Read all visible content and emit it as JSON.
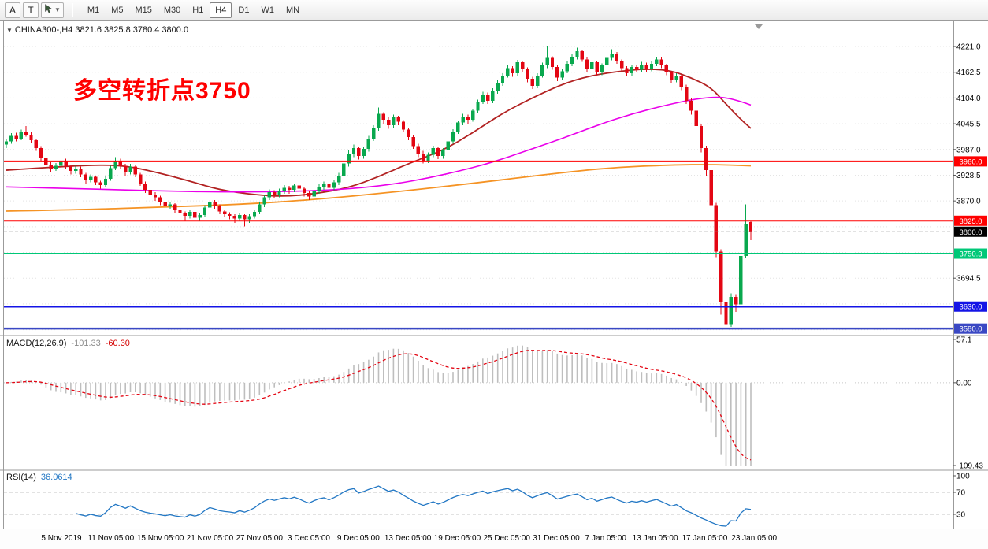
{
  "toolbar": {
    "tool_buttons": [
      {
        "name": "text-tool",
        "label": "A"
      },
      {
        "name": "label-tool",
        "label": "T"
      },
      {
        "name": "cursor-tool",
        "label": "",
        "has_dropdown": true
      }
    ],
    "timeframes": [
      "M1",
      "M5",
      "M15",
      "M30",
      "H1",
      "H4",
      "D1",
      "W1",
      "MN"
    ],
    "selected_timeframe": "H4"
  },
  "chart_data": {
    "type": "candlestick",
    "symbol": "CHINA300-",
    "timeframe": "H4",
    "header_text": "CHINA300-,H4 3821.6 3825.8 3780.4 3800.0",
    "last_bar": {
      "open": 3821.6,
      "high": 3825.8,
      "low": 3780.4,
      "close": 3800.0
    },
    "annotation": {
      "text": "多空转折点3750",
      "color": "#FF0000"
    },
    "colors": {
      "up": "#09A84E",
      "down": "#E30613",
      "grid": "#E4E4E4"
    },
    "price_axis": {
      "min": 3566,
      "max": 4273,
      "step": 58.5,
      "tick_labels": [
        4221.0,
        4162.5,
        4104.0,
        4045.5,
        3987.0,
        3928.5,
        3870.0,
        3694.5
      ]
    },
    "horizontal_lines": [
      {
        "price": 3960.0,
        "label": "3960.0",
        "color": "#FF0000",
        "width": 2
      },
      {
        "price": 3825.0,
        "label": "3825.0",
        "color": "#FF0000",
        "width": 2
      },
      {
        "price": 3750.3,
        "label": "3750.3",
        "color": "#00C878",
        "width": 2
      },
      {
        "price": 3630.0,
        "label": "3630.0",
        "color": "#1414E6",
        "width": 2.5
      },
      {
        "price": 3580.0,
        "label": "3580.0",
        "color": "#3A48C4",
        "width": 2.5
      }
    ],
    "current_price": {
      "value": 3800.0,
      "label": "3800.0",
      "box_color": "#000000"
    },
    "moving_averages": [
      {
        "name": "ma-red",
        "color": "#B22222",
        "width": 1.8,
        "points": [
          [
            0,
            3940
          ],
          [
            8,
            3946
          ],
          [
            18,
            3952
          ],
          [
            24,
            3950
          ],
          [
            30,
            3936
          ],
          [
            37,
            3915
          ],
          [
            43,
            3895
          ],
          [
            50,
            3884
          ],
          [
            56,
            3880
          ],
          [
            62,
            3886
          ],
          [
            69,
            3900
          ],
          [
            75,
            3925
          ],
          [
            81,
            3955
          ],
          [
            88,
            3985
          ],
          [
            94,
            4025
          ],
          [
            100,
            4070
          ],
          [
            107,
            4110
          ],
          [
            113,
            4140
          ],
          [
            119,
            4158
          ],
          [
            126,
            4168
          ],
          [
            130,
            4170
          ],
          [
            134,
            4166
          ],
          [
            138,
            4150
          ],
          [
            142,
            4128
          ],
          [
            145,
            4090
          ],
          [
            148,
            4055
          ],
          [
            150,
            4035
          ]
        ]
      },
      {
        "name": "ma-magenta",
        "color": "#EA00EA",
        "width": 1.6,
        "points": [
          [
            0,
            3902
          ],
          [
            15,
            3898
          ],
          [
            30,
            3893
          ],
          [
            45,
            3890
          ],
          [
            60,
            3892
          ],
          [
            70,
            3898
          ],
          [
            78,
            3908
          ],
          [
            85,
            3922
          ],
          [
            92,
            3940
          ],
          [
            98,
            3958
          ],
          [
            105,
            3985
          ],
          [
            112,
            4012
          ],
          [
            119,
            4042
          ],
          [
            126,
            4068
          ],
          [
            133,
            4088
          ],
          [
            138,
            4100
          ],
          [
            142,
            4106
          ],
          [
            145,
            4105
          ],
          [
            148,
            4096
          ],
          [
            150,
            4088
          ]
        ]
      },
      {
        "name": "ma-orange",
        "color": "#F59324",
        "width": 1.8,
        "points": [
          [
            0,
            3847
          ],
          [
            15,
            3850
          ],
          [
            31,
            3856
          ],
          [
            47,
            3862
          ],
          [
            62,
            3873
          ],
          [
            78,
            3890
          ],
          [
            94,
            3910
          ],
          [
            110,
            3932
          ],
          [
            122,
            3946
          ],
          [
            134,
            3952
          ],
          [
            142,
            3953
          ],
          [
            150,
            3950
          ]
        ]
      }
    ],
    "candles": [
      [
        3998,
        4012,
        3990,
        4005
      ],
      [
        4005,
        4024,
        4000,
        4018
      ],
      [
        4018,
        4025,
        4005,
        4012
      ],
      [
        4012,
        4032,
        4008,
        4026
      ],
      [
        4026,
        4040,
        4016,
        4020
      ],
      [
        4020,
        4026,
        4002,
        4008
      ],
      [
        4008,
        4012,
        3984,
        3990
      ],
      [
        3990,
        3995,
        3962,
        3968
      ],
      [
        3968,
        3974,
        3946,
        3952
      ],
      [
        3952,
        3958,
        3935,
        3942
      ],
      [
        3942,
        3956,
        3938,
        3950
      ],
      [
        3950,
        3970,
        3946,
        3962
      ],
      [
        3962,
        3966,
        3942,
        3948
      ],
      [
        3948,
        3952,
        3930,
        3938
      ],
      [
        3938,
        3950,
        3932,
        3944
      ],
      [
        3944,
        3948,
        3924,
        3930
      ],
      [
        3930,
        3934,
        3910,
        3918
      ],
      [
        3918,
        3930,
        3912,
        3925
      ],
      [
        3925,
        3928,
        3906,
        3912
      ],
      [
        3912,
        3916,
        3898,
        3906
      ],
      [
        3906,
        3926,
        3902,
        3920
      ],
      [
        3920,
        3950,
        3916,
        3945
      ],
      [
        3945,
        3970,
        3940,
        3962
      ],
      [
        3962,
        3966,
        3944,
        3950
      ],
      [
        3950,
        3954,
        3928,
        3935
      ],
      [
        3935,
        3954,
        3930,
        3948
      ],
      [
        3948,
        3952,
        3924,
        3930
      ],
      [
        3930,
        3934,
        3904,
        3910
      ],
      [
        3910,
        3914,
        3888,
        3895
      ],
      [
        3895,
        3900,
        3878,
        3885
      ],
      [
        3885,
        3890,
        3870,
        3878
      ],
      [
        3878,
        3882,
        3860,
        3868
      ],
      [
        3868,
        3872,
        3850,
        3858
      ],
      [
        3858,
        3868,
        3852,
        3862
      ],
      [
        3862,
        3865,
        3843,
        3850
      ],
      [
        3850,
        3854,
        3835,
        3842
      ],
      [
        3842,
        3846,
        3824,
        3836
      ],
      [
        3836,
        3850,
        3830,
        3845
      ],
      [
        3845,
        3848,
        3826,
        3832
      ],
      [
        3832,
        3843,
        3826,
        3838
      ],
      [
        3838,
        3860,
        3834,
        3855
      ],
      [
        3855,
        3874,
        3850,
        3868
      ],
      [
        3868,
        3872,
        3852,
        3858
      ],
      [
        3858,
        3862,
        3840,
        3846
      ],
      [
        3846,
        3850,
        3833,
        3840
      ],
      [
        3840,
        3844,
        3828,
        3836
      ],
      [
        3836,
        3840,
        3820,
        3830
      ],
      [
        3830,
        3843,
        3824,
        3838
      ],
      [
        3838,
        3840,
        3812,
        3828
      ],
      [
        3828,
        3840,
        3820,
        3835
      ],
      [
        3835,
        3850,
        3830,
        3845
      ],
      [
        3845,
        3867,
        3840,
        3862
      ],
      [
        3862,
        3883,
        3856,
        3878
      ],
      [
        3878,
        3896,
        3872,
        3890
      ],
      [
        3890,
        3894,
        3876,
        3884
      ],
      [
        3884,
        3898,
        3878,
        3892
      ],
      [
        3892,
        3906,
        3886,
        3900
      ],
      [
        3900,
        3904,
        3886,
        3895
      ],
      [
        3895,
        3910,
        3890,
        3905
      ],
      [
        3905,
        3909,
        3890,
        3898
      ],
      [
        3898,
        3902,
        3880,
        3888
      ],
      [
        3888,
        3892,
        3872,
        3880
      ],
      [
        3880,
        3897,
        3874,
        3892
      ],
      [
        3892,
        3908,
        3886,
        3902
      ],
      [
        3902,
        3914,
        3895,
        3908
      ],
      [
        3908,
        3912,
        3892,
        3900
      ],
      [
        3900,
        3918,
        3894,
        3912
      ],
      [
        3912,
        3934,
        3906,
        3928
      ],
      [
        3928,
        3960,
        3922,
        3955
      ],
      [
        3955,
        3985,
        3948,
        3978
      ],
      [
        3978,
        3998,
        3970,
        3990
      ],
      [
        3990,
        3994,
        3964,
        3972
      ],
      [
        3972,
        3994,
        3966,
        3988
      ],
      [
        3988,
        4018,
        3982,
        4012
      ],
      [
        4012,
        4042,
        4006,
        4035
      ],
      [
        4035,
        4082,
        4030,
        4068
      ],
      [
        4068,
        4072,
        4046,
        4055
      ],
      [
        4055,
        4060,
        4034,
        4042
      ],
      [
        4042,
        4066,
        4036,
        4060
      ],
      [
        4060,
        4064,
        4042,
        4050
      ],
      [
        4050,
        4054,
        4026,
        4032
      ],
      [
        4032,
        4036,
        4008,
        4015
      ],
      [
        4015,
        4020,
        3988,
        3995
      ],
      [
        3995,
        4000,
        3970,
        3978
      ],
      [
        3978,
        3984,
        3955,
        3962
      ],
      [
        3962,
        3980,
        3956,
        3975
      ],
      [
        3975,
        3996,
        3970,
        3990
      ],
      [
        3990,
        3994,
        3965,
        3972
      ],
      [
        3972,
        3990,
        3966,
        3985
      ],
      [
        3985,
        4010,
        3980,
        4005
      ],
      [
        4005,
        4033,
        4000,
        4028
      ],
      [
        4028,
        4053,
        4022,
        4048
      ],
      [
        4048,
        4068,
        4042,
        4062
      ],
      [
        4062,
        4066,
        4046,
        4055
      ],
      [
        4055,
        4080,
        4050,
        4075
      ],
      [
        4075,
        4100,
        4070,
        4095
      ],
      [
        4095,
        4118,
        4090,
        4112
      ],
      [
        4112,
        4116,
        4090,
        4098
      ],
      [
        4098,
        4126,
        4092,
        4120
      ],
      [
        4120,
        4144,
        4114,
        4138
      ],
      [
        4138,
        4160,
        4132,
        4155
      ],
      [
        4155,
        4178,
        4150,
        4172
      ],
      [
        4172,
        4176,
        4152,
        4160
      ],
      [
        4160,
        4191,
        4155,
        4185
      ],
      [
        4185,
        4189,
        4162,
        4170
      ],
      [
        4170,
        4174,
        4140,
        4148
      ],
      [
        4148,
        4152,
        4124,
        4132
      ],
      [
        4132,
        4160,
        4126,
        4155
      ],
      [
        4155,
        4184,
        4150,
        4178
      ],
      [
        4178,
        4221,
        4172,
        4195
      ],
      [
        4195,
        4199,
        4168,
        4175
      ],
      [
        4175,
        4179,
        4142,
        4150
      ],
      [
        4150,
        4170,
        4144,
        4165
      ],
      [
        4165,
        4188,
        4160,
        4182
      ],
      [
        4182,
        4204,
        4176,
        4198
      ],
      [
        4198,
        4218,
        4192,
        4210
      ],
      [
        4210,
        4214,
        4186,
        4192
      ],
      [
        4192,
        4196,
        4162,
        4170
      ],
      [
        4170,
        4190,
        4164,
        4185
      ],
      [
        4185,
        4189,
        4156,
        4162
      ],
      [
        4162,
        4183,
        4156,
        4178
      ],
      [
        4178,
        4200,
        4172,
        4195
      ],
      [
        4195,
        4215,
        4190,
        4205
      ],
      [
        4205,
        4209,
        4182,
        4188
      ],
      [
        4188,
        4192,
        4166,
        4172
      ],
      [
        4172,
        4176,
        4154,
        4160
      ],
      [
        4160,
        4180,
        4155,
        4175
      ],
      [
        4175,
        4179,
        4162,
        4168
      ],
      [
        4168,
        4186,
        4162,
        4180
      ],
      [
        4180,
        4184,
        4164,
        4170
      ],
      [
        4170,
        4187,
        4165,
        4182
      ],
      [
        4182,
        4198,
        4176,
        4192
      ],
      [
        4192,
        4196,
        4172,
        4178
      ],
      [
        4178,
        4182,
        4156,
        4162
      ],
      [
        4162,
        4166,
        4138,
        4145
      ],
      [
        4145,
        4160,
        4140,
        4155
      ],
      [
        4155,
        4158,
        4122,
        4130
      ],
      [
        4130,
        4134,
        4090,
        4098
      ],
      [
        4098,
        4104,
        4066,
        4075
      ],
      [
        4075,
        4080,
        4030,
        4040
      ],
      [
        4040,
        4044,
        3980,
        3990
      ],
      [
        3990,
        3996,
        3928,
        3940
      ],
      [
        3940,
        3944,
        3846,
        3860
      ],
      [
        3860,
        3866,
        3742,
        3755
      ],
      [
        3755,
        3760,
        3612,
        3640
      ],
      [
        3640,
        3648,
        3578,
        3590
      ],
      [
        3590,
        3660,
        3584,
        3652
      ],
      [
        3652,
        3658,
        3618,
        3635
      ],
      [
        3635,
        3752,
        3630,
        3745
      ],
      [
        3745,
        3862,
        3740,
        3818
      ],
      [
        3821.6,
        3825.8,
        3780.4,
        3800.0
      ]
    ],
    "indicators": [
      {
        "name": "MACD",
        "header": "MACD(12,26,9)",
        "params": [
          12,
          26,
          9
        ],
        "values_text": [
          "-101.33",
          "-60.30"
        ],
        "axis": {
          "max": 57.1,
          "max_label": "57.1",
          "zero_label": "0.00",
          "min": -109.43,
          "min_label": "-109.43"
        },
        "histogram_color": "#BEBEBE",
        "signal_color": "#E30613"
      },
      {
        "name": "RSI",
        "header": "RSI(14)",
        "params": [
          14
        ],
        "value_text": "36.0614",
        "levels": [
          100,
          70,
          30
        ],
        "line_color": "#2277C4"
      }
    ],
    "time_labels": [
      "5 Nov 2019",
      "11 Nov 05:00",
      "15 Nov 05:00",
      "21 Nov 05:00",
      "27 Nov 05:00",
      "3 Dec 05:00",
      "9 Dec 05:00",
      "13 Dec 05:00",
      "19 Dec 05:00",
      "25 Dec 05:00",
      "31 Dec 05:00",
      "7 Jan 05:00",
      "13 Jan 05:00",
      "17 Jan 05:00",
      "23 Jan 05:00"
    ]
  }
}
